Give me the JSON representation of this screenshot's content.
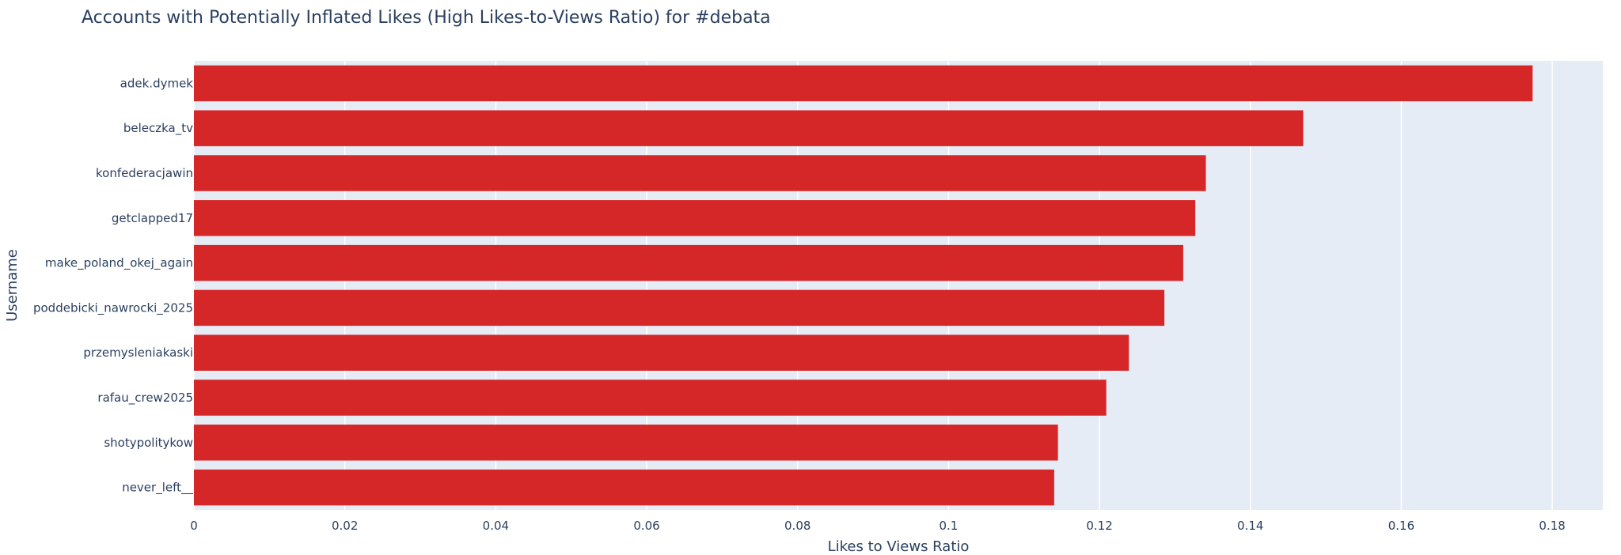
{
  "chart_data": {
    "type": "bar",
    "orientation": "horizontal",
    "title": "Accounts with Potentially Inflated Likes (High Likes-to-Views Ratio) for #debata",
    "xlabel": "Likes to Views Ratio",
    "ylabel": "Username",
    "categories": [
      "adek.dymek",
      "beleczka_tv",
      "konfederacjawin",
      "getclapped17",
      "make_poland_okej_again",
      "poddebicki_nawrocki_2025",
      "przemysleniakaski",
      "rafau_crew2025",
      "shotypolitykow",
      "never_left__"
    ],
    "values": [
      0.1774,
      0.147,
      0.1341,
      0.1327,
      0.1311,
      0.1286,
      0.1239,
      0.1209,
      0.1145,
      0.114
    ],
    "xlim": [
      0,
      0.1867
    ],
    "xticks": [
      0,
      0.02,
      0.04,
      0.06,
      0.08,
      0.1,
      0.12,
      0.14,
      0.16,
      0.18
    ],
    "xtick_labels": [
      "0",
      "0.02",
      "0.04",
      "0.06",
      "0.08",
      "0.1",
      "0.12",
      "0.14",
      "0.16",
      "0.18"
    ],
    "grid": true,
    "colors": {
      "bar": "#d62728",
      "plot_bg": "#e5ecf6",
      "grid": "#ffffff",
      "text": "#2a3f5f"
    }
  }
}
